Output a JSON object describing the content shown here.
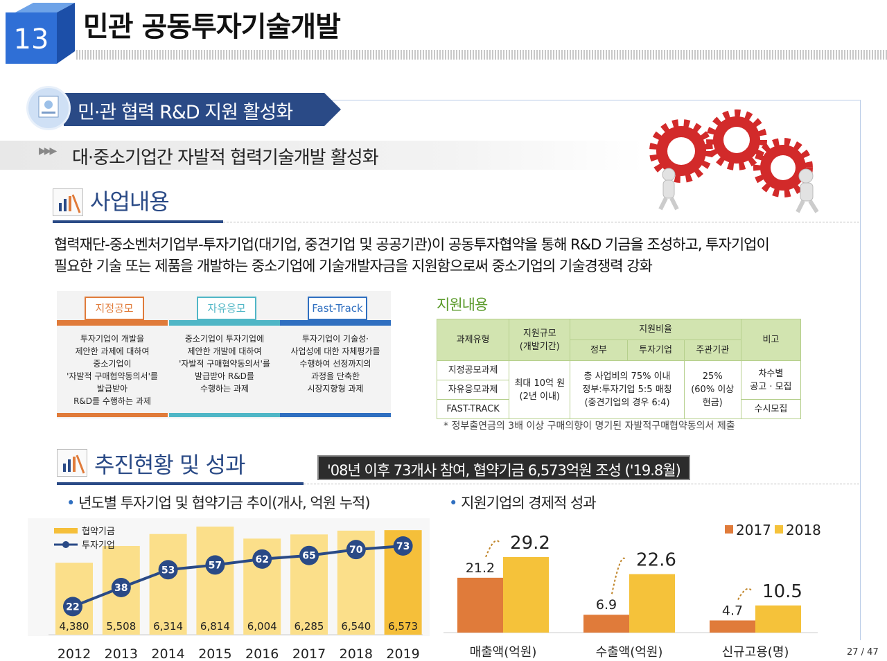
{
  "header": {
    "number": "13",
    "title": "민관 공동투자기술개발"
  },
  "section": {
    "title": "민·관 협력 R&D 지원 활성화",
    "subtitle": "대·중소기업간 자발적 협력기술개발 활성화"
  },
  "business": {
    "heading": "사업내용",
    "description_line1": "협력재단-중소벤처기업부-투자기업(대기업, 중견기업 및 공공기관)이 공동투자협약을 통해 R&D 기금을 조성하고, 투자기업이",
    "description_line2": "필요한 기술 또는 제품을 개발하는 중소기업에 기술개발자금을 지원함으로써 중소기업의 기술경쟁력 강화"
  },
  "categories": [
    {
      "label": "지정공모",
      "color": "#e07b3a",
      "lines": [
        "투자기업이 개발을",
        "제안한 과제에 대하여",
        "중소기업이",
        "'자발적 구매협약동의서'를",
        "발급받아",
        "R&D를 수행하는 과제"
      ]
    },
    {
      "label": "자유응모",
      "color": "#4fb6c6",
      "lines": [
        "중소기업이 투자기업에",
        "제안한 개발에 대하여",
        "'자발적 구매협약동의서'를",
        "발급받아 R&D를",
        "수행하는 과제"
      ]
    },
    {
      "label": "Fast-Track",
      "color": "#2f6fc0",
      "lines": [
        "투자기업이 기술성·",
        "사업성에 대한 자체평가를",
        "수행하여 선정까지의",
        "과정을 단축한",
        "시장지향형 과제"
      ]
    }
  ],
  "support": {
    "title": "지원내용",
    "headers": {
      "type": "과제유형",
      "scale": "지원규모",
      "scale2": "(개발기간)",
      "ratio": "지원비율",
      "gov": "정부",
      "investor": "투자기업",
      "host": "주관기관",
      "remark": "비고"
    },
    "rows": [
      "지정공모과제",
      "자유응모과제",
      "FAST-TRACK"
    ],
    "scale_value": "최대 10억 원",
    "scale_value2": "(2년 이내)",
    "ratio_value": "총 사업비의 75% 이내",
    "ratio_value2": "정부:투자기업 5:5 매칭",
    "ratio_value3": "(중견기업의 경우 6:4)",
    "host_value": "25%",
    "host_value2": "(60% 이상",
    "host_value3": "현금)",
    "remark1": "차수별",
    "remark2": "공고 · 모집",
    "remark3": "수시모집",
    "note": "* 정부출연금의 3배 이상 구매의향이 명기된 자발적구매협약동의서 제출"
  },
  "progress": {
    "heading": "추진현황 및 성과",
    "highlight": "'08년 이후 73개사 참여, 협약기금 6,573억원 조성 ('19.8월)",
    "left_title": "년도별 투자기업 및 협약기금 추이(개사, 억원 누적)",
    "right_title": "지원기업의 경제적 성과"
  },
  "chart_data": [
    {
      "type": "bar",
      "title": "년도별 투자기업 및 협약기금 추이(개사, 억원 누적)",
      "categories": [
        "2012",
        "2013",
        "2014",
        "2015",
        "2016",
        "2017",
        "2018",
        "2019"
      ],
      "series": [
        {
          "name": "협약기금",
          "type": "bar",
          "values": [
            4380,
            5508,
            6314,
            6814,
            6004,
            6285,
            6540,
            6573
          ],
          "labels": [
            "4,380",
            "5,508",
            "6,314",
            "6,814",
            "6,004",
            "6,285",
            "6,540",
            "6,573"
          ]
        },
        {
          "name": "투자기업",
          "type": "line",
          "values": [
            22,
            38,
            53,
            57,
            62,
            65,
            70,
            73
          ]
        }
      ],
      "colors": {
        "bar": "#fbdf8a",
        "bar_last": "#f5bf3a",
        "line": "#2a4a86"
      },
      "legend": "top-left"
    },
    {
      "type": "bar",
      "title": "지원기업의 경제적 성과",
      "categories": [
        "매출액(억원)",
        "수출액(억원)",
        "신규고용(명)"
      ],
      "series": [
        {
          "name": "2017",
          "values": [
            21.2,
            6.9,
            4.7
          ]
        },
        {
          "name": "2018",
          "values": [
            29.2,
            22.6,
            10.5
          ]
        }
      ],
      "colors": {
        "2017": "#e07b3a",
        "2018": "#f5c23a"
      },
      "legend": "top-right"
    }
  ],
  "page": "27 / 47"
}
